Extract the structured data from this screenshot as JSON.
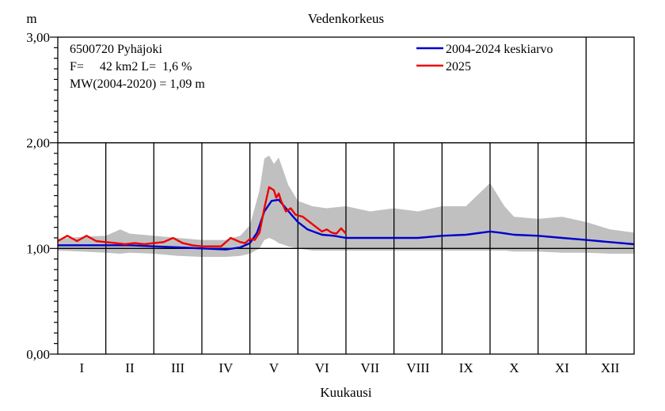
{
  "chart_data": {
    "type": "line",
    "title": "Vedenkorkeus",
    "ylabel": "m",
    "xlabel": "Kuukausi",
    "ylim": [
      0,
      3
    ],
    "yticks": [
      0,
      1,
      2,
      3
    ],
    "ytick_labels": [
      "0,00",
      "1,00",
      "2,00",
      "3,00"
    ],
    "months": [
      "I",
      "II",
      "III",
      "IV",
      "V",
      "VI",
      "VII",
      "VIII",
      "IX",
      "X",
      "XI",
      "XII"
    ],
    "grid": true,
    "legend_placement": "top-right",
    "info_lines": [
      "6500720 Pyhäjoki",
      "F=     42 km2 L=  1,6 %",
      "MW(2004-2020) = 1,09 m"
    ],
    "range_band": {
      "x": [
        0,
        0.5,
        1,
        1.3,
        1.5,
        2,
        2.5,
        3,
        3.5,
        3.8,
        4,
        4.2,
        4.3,
        4.4,
        4.5,
        4.6,
        4.8,
        5,
        5.3,
        5.6,
        6,
        6.5,
        7,
        7.5,
        8,
        8.5,
        9,
        9.3,
        9.5,
        10,
        10.5,
        11,
        11.5,
        12
      ],
      "upper": [
        1.09,
        1.11,
        1.12,
        1.18,
        1.14,
        1.12,
        1.1,
        1.08,
        1.08,
        1.12,
        1.22,
        1.55,
        1.85,
        1.88,
        1.8,
        1.86,
        1.6,
        1.45,
        1.4,
        1.38,
        1.4,
        1.35,
        1.38,
        1.35,
        1.4,
        1.4,
        1.62,
        1.4,
        1.3,
        1.28,
        1.3,
        1.25,
        1.18,
        1.15
      ],
      "lower": [
        0.98,
        0.97,
        0.96,
        0.95,
        0.96,
        0.95,
        0.93,
        0.92,
        0.92,
        0.93,
        0.95,
        1.0,
        1.08,
        1.1,
        1.08,
        1.05,
        1.02,
        1.0,
        0.98,
        0.98,
        0.98,
        0.98,
        0.98,
        0.98,
        0.98,
        0.98,
        0.98,
        0.98,
        0.97,
        0.97,
        0.96,
        0.96,
        0.95,
        0.95
      ]
    },
    "series": [
      {
        "name": "2004-2024 keskiarvo",
        "color": "#0000cc",
        "x": [
          0,
          0.5,
          1,
          1.5,
          2,
          2.5,
          3,
          3.5,
          3.8,
          4,
          4.15,
          4.3,
          4.45,
          4.6,
          4.75,
          4.9,
          5,
          5.2,
          5.5,
          5.75,
          6,
          6.5,
          7,
          7.5,
          8,
          8.5,
          9,
          9.2,
          9.5,
          10,
          10.5,
          11,
          11.5,
          12
        ],
        "y": [
          1.03,
          1.03,
          1.03,
          1.03,
          1.02,
          1.01,
          1.0,
          0.99,
          1.01,
          1.05,
          1.15,
          1.35,
          1.45,
          1.46,
          1.38,
          1.3,
          1.25,
          1.18,
          1.13,
          1.12,
          1.1,
          1.1,
          1.1,
          1.1,
          1.12,
          1.13,
          1.16,
          1.15,
          1.13,
          1.12,
          1.1,
          1.08,
          1.06,
          1.04
        ]
      },
      {
        "name": "2025",
        "color": "#ee0000",
        "x": [
          0,
          0.2,
          0.4,
          0.6,
          0.8,
          1.0,
          1.2,
          1.4,
          1.6,
          1.8,
          2.0,
          2.2,
          2.4,
          2.6,
          2.8,
          3.0,
          3.2,
          3.4,
          3.6,
          3.8,
          3.9,
          4.0,
          4.1,
          4.2,
          4.3,
          4.4,
          4.5,
          4.55,
          4.6,
          4.65,
          4.75,
          4.85,
          4.95,
          5.1,
          5.3,
          5.5,
          5.6,
          5.7,
          5.8,
          5.9,
          6.0
        ],
        "y": [
          1.07,
          1.12,
          1.07,
          1.12,
          1.07,
          1.06,
          1.05,
          1.04,
          1.05,
          1.04,
          1.05,
          1.06,
          1.1,
          1.05,
          1.03,
          1.02,
          1.02,
          1.02,
          1.1,
          1.06,
          1.05,
          1.09,
          1.08,
          1.15,
          1.38,
          1.58,
          1.55,
          1.48,
          1.52,
          1.45,
          1.35,
          1.38,
          1.32,
          1.3,
          1.23,
          1.16,
          1.18,
          1.15,
          1.14,
          1.19,
          1.14
        ]
      }
    ]
  }
}
